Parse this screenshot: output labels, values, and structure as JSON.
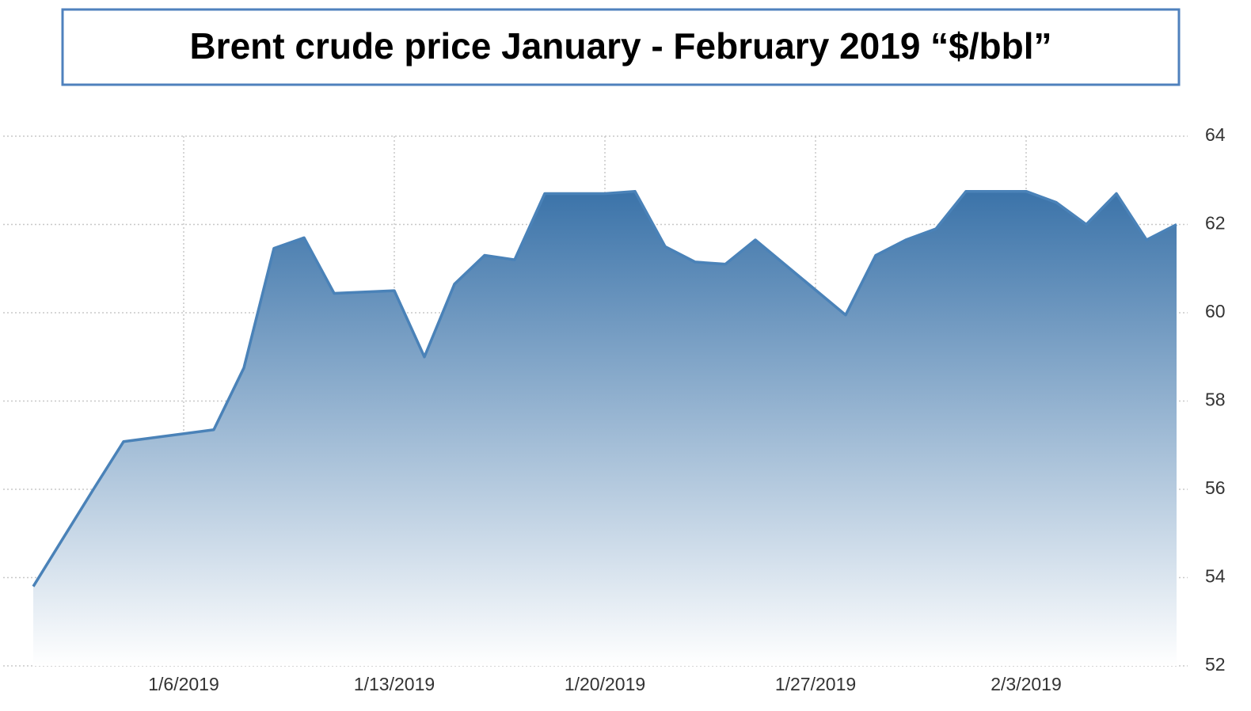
{
  "chart_data": {
    "type": "area",
    "title": "Brent crude price January - February 2019 “$/bbl”",
    "x": [
      "2019-01-01",
      "2019-01-02",
      "2019-01-03",
      "2019-01-04",
      "2019-01-07",
      "2019-01-08",
      "2019-01-09",
      "2019-01-10",
      "2019-01-11",
      "2019-01-13",
      "2019-01-14",
      "2019-01-15",
      "2019-01-16",
      "2019-01-17",
      "2019-01-18",
      "2019-01-20",
      "2019-01-21",
      "2019-01-22",
      "2019-01-23",
      "2019-01-24",
      "2019-01-25",
      "2019-01-28",
      "2019-01-29",
      "2019-01-30",
      "2019-01-31",
      "2019-02-01",
      "2019-02-03",
      "2019-02-04",
      "2019-02-05",
      "2019-02-06",
      "2019-02-07",
      "2019-02-08"
    ],
    "series": [
      {
        "name": "Brent",
        "color": "#4a82b8",
        "values": [
          53.8,
          54.9,
          56.0,
          57.08,
          57.35,
          58.75,
          61.46,
          61.7,
          60.44,
          60.5,
          59.0,
          60.65,
          61.3,
          61.2,
          62.7,
          62.7,
          62.75,
          61.5,
          61.15,
          61.1,
          61.65,
          59.95,
          61.3,
          61.65,
          61.9,
          62.75,
          62.75,
          62.5,
          62.0,
          62.7,
          61.65,
          62.0
        ]
      }
    ],
    "xlim": [
      "2018-12-31",
      "2019-02-09"
    ],
    "xticks": [
      {
        "value": "2019-01-06",
        "label": "1/6/2019"
      },
      {
        "value": "2019-01-13",
        "label": "1/13/2019"
      },
      {
        "value": "2019-01-20",
        "label": "1/20/2019"
      },
      {
        "value": "2019-01-27",
        "label": "1/27/2019"
      },
      {
        "value": "2019-02-03",
        "label": "2/3/2019"
      }
    ],
    "ylim": [
      52,
      64
    ],
    "yticks": [
      52,
      54,
      56,
      58,
      60,
      62,
      64
    ],
    "grid": true
  }
}
